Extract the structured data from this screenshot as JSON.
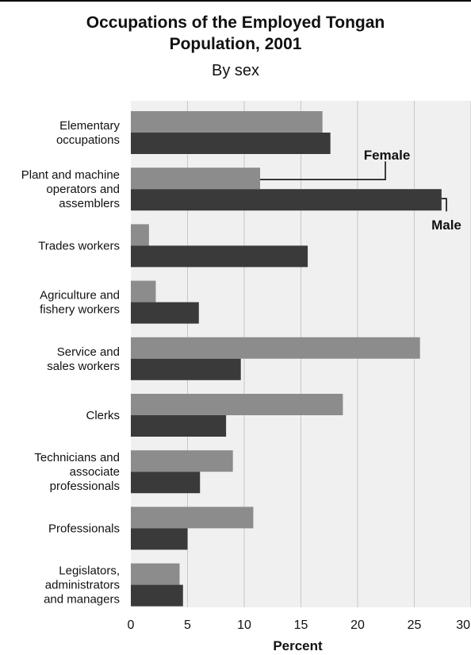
{
  "chart_data": {
    "type": "bar",
    "orientation": "horizontal",
    "title_line1": "Occupations of the Employed Tongan",
    "title_line2": "Population, 2001",
    "subtitle": "By sex",
    "xlabel": "Percent",
    "xlim": [
      0,
      30
    ],
    "xticks": [
      0,
      5,
      10,
      15,
      20,
      25,
      30
    ],
    "grid": true,
    "categories": [
      [
        "Elementary",
        "occupations"
      ],
      [
        "Plant and machine",
        "operators and",
        "assemblers"
      ],
      [
        "Trades workers"
      ],
      [
        "Agriculture and",
        "fishery workers"
      ],
      [
        "Service and",
        "sales workers"
      ],
      [
        "Clerks"
      ],
      [
        "Technicians and",
        "associate",
        "professionals"
      ],
      [
        "Professionals"
      ],
      [
        "Legislators,",
        "administrators",
        "and managers"
      ]
    ],
    "series": [
      {
        "name": "Female",
        "color": "#8c8c8c",
        "values": [
          16.9,
          11.4,
          1.6,
          2.2,
          25.5,
          18.7,
          9.0,
          10.8,
          4.3
        ]
      },
      {
        "name": "Male",
        "color": "#3a3a3a",
        "values": [
          17.6,
          27.4,
          15.6,
          6.0,
          9.7,
          8.4,
          6.1,
          5.0,
          4.6
        ]
      }
    ],
    "legend_placement": "inline-annotations"
  },
  "colors": {
    "plot_background": "#f0f0f0",
    "gridline": "#c8c8c8"
  }
}
